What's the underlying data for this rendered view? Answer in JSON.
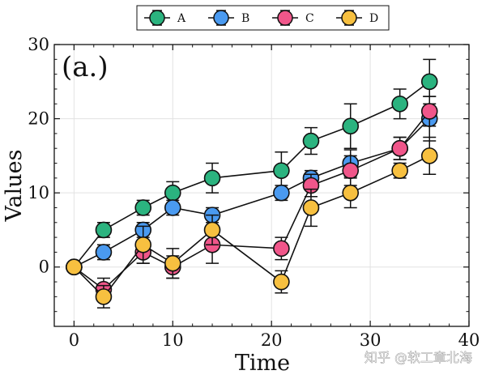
{
  "chart_data": {
    "type": "line",
    "title": "",
    "panel_label": "(a.)",
    "xlabel": "Time",
    "ylabel": "Values",
    "xlim": [
      -2,
      40
    ],
    "ylim": [
      -8,
      30
    ],
    "xticks": [
      0,
      10,
      20,
      30,
      40
    ],
    "yticks": [
      0,
      10,
      20,
      30
    ],
    "grid": true,
    "legend_position": "top-center",
    "x": [
      0,
      3,
      7,
      10,
      14,
      21,
      24,
      28,
      33,
      36
    ],
    "series": [
      {
        "name": "A",
        "color": "#2bb37f",
        "values": [
          0,
          5,
          8,
          10,
          12,
          13,
          17,
          19,
          22,
          25
        ],
        "errors": [
          0,
          1,
          1,
          1.5,
          2,
          2.5,
          1.8,
          3,
          2,
          3
        ]
      },
      {
        "name": "B",
        "color": "#4a9af0",
        "values": [
          0,
          2,
          5,
          8,
          7,
          10,
          12,
          14,
          16,
          20
        ],
        "errors": [
          0,
          1,
          1,
          1,
          1,
          1,
          1,
          1.8,
          1.5,
          3
        ]
      },
      {
        "name": "C",
        "color": "#f0568a",
        "values": [
          0,
          -3,
          2,
          0,
          3,
          2.5,
          11,
          13,
          16,
          21
        ],
        "errors": [
          0,
          1.5,
          1.5,
          1.5,
          2.5,
          1.5,
          1.5,
          2,
          1.5,
          2
        ]
      },
      {
        "name": "D",
        "color": "#f7c040",
        "values": [
          0,
          -4,
          3,
          0.5,
          5,
          -2,
          8,
          10,
          13,
          15
        ],
        "errors": [
          0,
          1.5,
          2.5,
          2,
          2,
          1.5,
          2.5,
          2,
          1,
          2.5
        ]
      }
    ]
  },
  "watermark": "知乎 @软工章北海"
}
